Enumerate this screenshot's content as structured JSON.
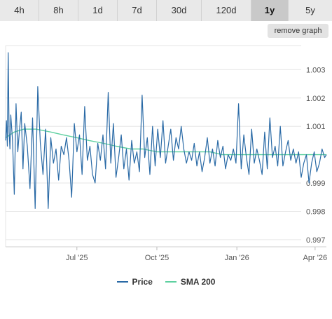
{
  "tabs": [
    {
      "label": "4h",
      "active": false
    },
    {
      "label": "8h",
      "active": false
    },
    {
      "label": "1d",
      "active": false
    },
    {
      "label": "7d",
      "active": false
    },
    {
      "label": "30d",
      "active": false
    },
    {
      "label": "120d",
      "active": false
    },
    {
      "label": "1y",
      "active": true
    },
    {
      "label": "5y",
      "active": false
    }
  ],
  "remove_graph_label": "remove graph",
  "colors": {
    "price": "#2a6aa6",
    "sma": "#5ed0a0",
    "grid": "#e6e6e6"
  },
  "chart_data": {
    "type": "line",
    "x_ticks": [
      "Jul '25",
      "Oct '25",
      "Jan '26",
      "Apr '26"
    ],
    "y_ticks": [
      "1.003",
      "1.002",
      "1.001",
      "0.999",
      "0.998",
      "0.997"
    ],
    "ylim": [
      0.99675,
      1.00385
    ],
    "x_range": [
      "2025-04-10",
      "2026-04-14"
    ],
    "grid": true,
    "legend_position": "bottom",
    "series": [
      {
        "name": "Price",
        "dates": [
          "2025-04-10",
          "2025-04-11",
          "2025-04-12",
          "2025-04-13",
          "2025-04-14",
          "2025-04-15",
          "2025-04-16",
          "2025-04-18",
          "2025-04-20",
          "2025-04-22",
          "2025-04-24",
          "2025-04-26",
          "2025-04-28",
          "2025-04-30",
          "2025-05-02",
          "2025-05-05",
          "2025-05-08",
          "2025-05-11",
          "2025-05-14",
          "2025-05-17",
          "2025-05-20",
          "2025-05-23",
          "2025-05-26",
          "2025-05-29",
          "2025-06-01",
          "2025-06-04",
          "2025-06-07",
          "2025-06-10",
          "2025-06-13",
          "2025-06-16",
          "2025-06-19",
          "2025-06-22",
          "2025-06-25",
          "2025-06-28",
          "2025-07-01",
          "2025-07-04",
          "2025-07-07",
          "2025-07-10",
          "2025-07-13",
          "2025-07-16",
          "2025-07-19",
          "2025-07-22",
          "2025-07-25",
          "2025-07-28",
          "2025-07-31",
          "2025-08-03",
          "2025-08-06",
          "2025-08-09",
          "2025-08-12",
          "2025-08-15",
          "2025-08-18",
          "2025-08-21",
          "2025-08-24",
          "2025-08-27",
          "2025-08-30",
          "2025-09-02",
          "2025-09-05",
          "2025-09-08",
          "2025-09-11",
          "2025-09-14",
          "2025-09-17",
          "2025-09-20",
          "2025-09-23",
          "2025-09-26",
          "2025-09-29",
          "2025-10-02",
          "2025-10-05",
          "2025-10-08",
          "2025-10-11",
          "2025-10-14",
          "2025-10-17",
          "2025-10-20",
          "2025-10-23",
          "2025-10-26",
          "2025-10-29",
          "2025-11-01",
          "2025-11-04",
          "2025-11-07",
          "2025-11-10",
          "2025-11-13",
          "2025-11-16",
          "2025-11-19",
          "2025-11-22",
          "2025-11-25",
          "2025-11-28",
          "2025-12-01",
          "2025-12-04",
          "2025-12-07",
          "2025-12-10",
          "2025-12-13",
          "2025-12-16",
          "2025-12-19",
          "2025-12-22",
          "2025-12-25",
          "2025-12-28",
          "2025-12-31",
          "2026-01-03",
          "2026-01-06",
          "2026-01-09",
          "2026-01-12",
          "2026-01-15",
          "2026-01-18",
          "2026-01-21",
          "2026-01-24",
          "2026-01-27",
          "2026-01-30",
          "2026-02-02",
          "2026-02-05",
          "2026-02-08",
          "2026-02-11",
          "2026-02-14",
          "2026-02-17",
          "2026-02-20",
          "2026-02-23",
          "2026-02-26",
          "2026-03-01",
          "2026-03-04",
          "2026-03-07",
          "2026-03-10",
          "2026-03-13",
          "2026-03-16",
          "2026-03-19",
          "2026-03-22",
          "2026-03-25",
          "2026-03-28",
          "2026-03-31",
          "2026-04-03",
          "2026-04-06",
          "2026-04-09",
          "2026-04-12",
          "2026-04-14"
        ],
        "values": [
          1.0005,
          1.0012,
          1.0003,
          1.0036,
          1.0008,
          1.0002,
          1.0014,
          1.0005,
          0.9986,
          1.0018,
          1.0001,
          1.0009,
          1.0015,
          0.9995,
          1.0011,
          1.0003,
          0.9988,
          1.0013,
          0.9981,
          1.0024,
          1.0004,
          0.9993,
          1.0009,
          0.9981,
          1.0006,
          0.9997,
          1.0002,
          0.9991,
          1.0003,
          1.0,
          1.0006,
          0.9998,
          0.9985,
          1.0011,
          1.0001,
          1.0007,
          0.9993,
          1.0017,
          0.9998,
          1.0003,
          0.9993,
          0.999,
          1.0004,
          0.9998,
          1.0007,
          0.9995,
          1.0022,
          0.9997,
          1.0011,
          0.9992,
          0.9999,
          1.0007,
          0.9995,
          1.0002,
          0.9991,
          1.0005,
          0.9997,
          1.0001,
          0.9994,
          1.0021,
          0.9999,
          1.0006,
          0.9993,
          1.001,
          0.9996,
          1.0009,
          0.9999,
          1.0012,
          0.9997,
          1.0003,
          1.0009,
          0.9998,
          1.0006,
          1.0002,
          1.001,
          1.0002,
          0.9997,
          1.0001,
          0.9998,
          1.0004,
          0.9996,
          1.0001,
          0.9994,
          0.9999,
          1.0006,
          0.9997,
          1.0002,
          0.9996,
          1.0005,
          0.9999,
          1.0003,
          0.9995,
          1.0,
          0.9998,
          1.0002,
          0.9997,
          1.0018,
          0.9995,
          1.0007,
          0.9999,
          0.9993,
          1.0009,
          0.9997,
          1.0002,
          0.9998,
          0.9993,
          1.0008,
          0.9995,
          1.0013,
          0.9999,
          1.0003,
          0.9996,
          1.001,
          0.9996,
          1.0001,
          1.0005,
          0.9998,
          1.0002,
          0.9997,
          1.0001,
          0.9992,
          0.9997,
          1.0,
          0.999,
          0.9997,
          1.0001,
          0.9994,
          0.9997,
          1.0002,
          0.9999,
          1.0
        ]
      },
      {
        "name": "SMA 200",
        "dates": [
          "2025-04-10",
          "2025-04-20",
          "2025-05-01",
          "2025-05-15",
          "2025-06-01",
          "2025-06-15",
          "2025-07-01",
          "2025-07-15",
          "2025-08-01",
          "2025-08-15",
          "2025-09-01",
          "2025-09-15",
          "2025-10-01",
          "2025-10-15",
          "2025-11-01",
          "2025-11-15",
          "2025-12-01",
          "2025-12-15",
          "2026-01-01",
          "2026-01-15",
          "2026-02-01",
          "2026-02-15",
          "2026-03-01",
          "2026-03-15",
          "2026-04-01",
          "2026-04-14"
        ],
        "values": [
          1.0006,
          1.0008,
          1.0009,
          1.0009,
          1.0008,
          1.0007,
          1.0006,
          1.0005,
          1.0004,
          1.0003,
          1.0002,
          1.0002,
          1.0001,
          1.0001,
          1.0001,
          1.0001,
          1.0001,
          1.0,
          1.0,
          1.0,
          1.0,
          1.0,
          1.0,
          1.0,
          1.0,
          1.0
        ]
      }
    ]
  }
}
